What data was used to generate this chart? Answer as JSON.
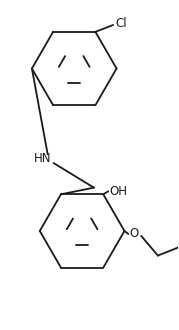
{
  "background_color": "#ffffff",
  "line_color": "#1a1a1a",
  "fig_width": 1.79,
  "fig_height": 3.3,
  "dpi": 100,
  "Cl_label": "Cl",
  "NH_label": "HN",
  "OH_label": "OH",
  "O_label": "O"
}
